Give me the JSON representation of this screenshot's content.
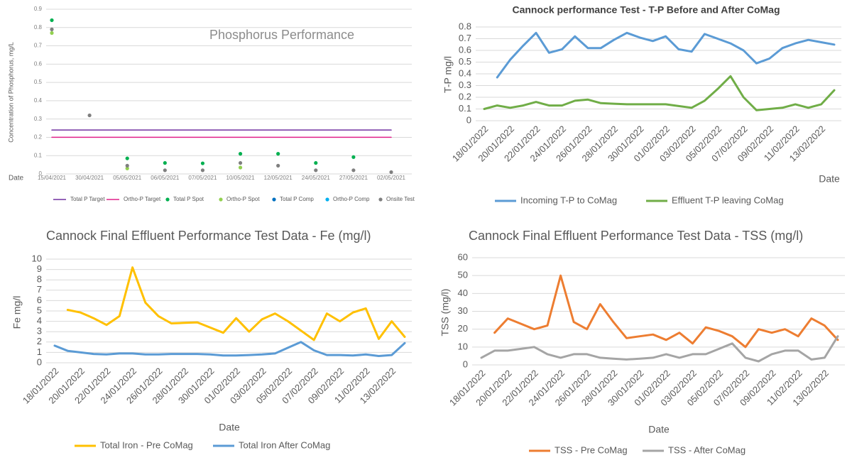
{
  "chart_data": [
    {
      "type": "scatter",
      "title": "Phosphorus Performance",
      "y_label": "Concentration of Phosphorus, mg/L",
      "x_label": "Date",
      "categories": [
        "15/04/2021",
        "30/04/2021",
        "05/05/2021",
        "06/05/2021",
        "07/05/2021",
        "10/05/2021",
        "12/05/2021",
        "24/05/2021",
        "27/05/2021",
        "02/05/2021"
      ],
      "ylim": [
        0,
        0.9
      ],
      "yticks": [
        0,
        0.1,
        0.2,
        0.3,
        0.4,
        0.5,
        0.6,
        0.7,
        0.8,
        0.9
      ],
      "grid": true,
      "legend": "bottom",
      "series": [
        {
          "name": "Total P Target",
          "color": "#7030a0",
          "style": "line",
          "values": [
            0.24,
            0.24,
            0.24,
            0.24,
            0.24,
            0.24,
            0.24,
            0.24,
            0.24,
            0.24
          ]
        },
        {
          "name": "Ortho-P Target",
          "color": "#e0218a",
          "style": "line",
          "values": [
            0.2,
            0.2,
            0.2,
            0.2,
            0.2,
            0.2,
            0.2,
            0.2,
            0.2,
            0.2
          ]
        },
        {
          "name": "Total P Spot",
          "color": "#00b050",
          "style": "marker",
          "values": [
            0.84,
            null,
            0.085,
            0.06,
            0.058,
            0.11,
            0.11,
            0.06,
            0.092,
            null
          ]
        },
        {
          "name": "Ortho-P Spot",
          "color": "#92d050",
          "style": "marker",
          "values": [
            0.77,
            null,
            0.03,
            null,
            null,
            0.035,
            null,
            null,
            null,
            null
          ]
        },
        {
          "name": "Total P Comp",
          "color": "#0070c0",
          "style": "marker",
          "values": [
            null,
            null,
            null,
            null,
            null,
            null,
            null,
            null,
            null,
            null
          ]
        },
        {
          "name": "Ortho-P Comp",
          "color": "#00b0f0",
          "style": "marker",
          "values": [
            null,
            null,
            null,
            null,
            null,
            null,
            null,
            null,
            null,
            null
          ]
        },
        {
          "name": "Onsite Test",
          "color": "#7f7f7f",
          "style": "marker",
          "values": [
            0.79,
            0.32,
            0.045,
            0.02,
            0.02,
            0.06,
            0.045,
            0.02,
            0.02,
            0.01
          ]
        }
      ]
    },
    {
      "type": "line",
      "title": "Cannock performance Test - T-P Before and After CoMag",
      "y_label": "T-P mg/l",
      "x_label": "Date",
      "categories": [
        "18/01/2022",
        null,
        "20/01/2022",
        null,
        "22/01/2022",
        null,
        "24/01/2022",
        null,
        "26/01/2022",
        null,
        "28/01/2022",
        null,
        "30/01/2022",
        null,
        "01/02/2022",
        null,
        "03/02/2022",
        null,
        "05/02/2022",
        null,
        "07/02/2022",
        null,
        "09/02/2022",
        null,
        "11/02/2022",
        null,
        "13/02/2022",
        null
      ],
      "ylim": [
        0,
        0.8
      ],
      "yticks": [
        0,
        0.1,
        0.2,
        0.3,
        0.4,
        0.5,
        0.6,
        0.7,
        0.8
      ],
      "grid": true,
      "legend": "bottom",
      "series": [
        {
          "name": "Incoming T-P to CoMag",
          "color": "#5b9bd5",
          "values": [
            null,
            0.37,
            0.52,
            0.64,
            0.75,
            0.58,
            0.61,
            0.72,
            0.62,
            0.62,
            0.69,
            0.75,
            0.71,
            0.68,
            0.72,
            0.61,
            0.59,
            0.74,
            0.7,
            0.66,
            0.6,
            0.49,
            0.53,
            0.62,
            0.66,
            0.69,
            0.67,
            0.65
          ]
        },
        {
          "name": "Effluent T-P leaving CoMag",
          "color": "#70ad47",
          "values": [
            0.1,
            0.13,
            0.11,
            0.13,
            0.16,
            0.13,
            0.13,
            0.17,
            0.18,
            0.15,
            0.145,
            0.14,
            0.14,
            0.14,
            0.14,
            0.125,
            0.11,
            0.17,
            0.27,
            0.38,
            0.2,
            0.09,
            0.1,
            0.11,
            0.14,
            0.11,
            0.14,
            0.26
          ]
        }
      ]
    },
    {
      "type": "line",
      "title": "Cannock Final Effluent Performance Test Data - Fe (mg/l)",
      "y_label": "Fe mg/l",
      "x_label": "Date",
      "categories": [
        "18/01/2022",
        null,
        "20/01/2022",
        null,
        "22/01/2022",
        null,
        "24/01/2022",
        null,
        "26/01/2022",
        null,
        "28/01/2022",
        null,
        "30/01/2022",
        null,
        "01/02/2022",
        null,
        "03/02/2022",
        null,
        "05/02/2022",
        null,
        "07/02/2022",
        null,
        "09/02/2022",
        null,
        "11/02/2022",
        null,
        "13/02/2022",
        null
      ],
      "ylim": [
        0,
        10
      ],
      "yticks": [
        0,
        1,
        2,
        3,
        4,
        5,
        6,
        7,
        8,
        9,
        10
      ],
      "grid": true,
      "legend": "bottom",
      "series": [
        {
          "name": "Total Iron - Pre CoMag",
          "color": "#ffc000",
          "values": [
            null,
            5.1,
            4.85,
            4.3,
            3.65,
            4.5,
            9.2,
            5.8,
            4.5,
            3.8,
            3.85,
            3.9,
            3.4,
            2.9,
            4.3,
            3.0,
            4.2,
            4.75,
            4.0,
            3.1,
            2.2,
            4.75,
            4.0,
            4.85,
            5.25,
            2.3,
            4.0,
            2.5
          ]
        },
        {
          "name": "Total Iron After CoMag",
          "color": "#5b9bd5",
          "values": [
            1.65,
            1.15,
            1.0,
            0.85,
            0.8,
            0.9,
            0.9,
            0.8,
            0.8,
            0.85,
            0.85,
            0.85,
            0.8,
            0.7,
            0.7,
            0.75,
            0.8,
            0.9,
            1.45,
            2.0,
            1.2,
            0.75,
            0.75,
            0.7,
            0.8,
            0.65,
            0.75,
            1.9
          ]
        }
      ]
    },
    {
      "type": "line",
      "title": "Cannock Final Effluent Performance Test Data - TSS (mg/l)",
      "y_label": "TSS (mg/l)",
      "x_label": "Date",
      "categories": [
        "18/01/2022",
        null,
        "20/01/2022",
        null,
        "22/01/2022",
        null,
        "24/01/2022",
        null,
        "26/01/2022",
        null,
        "28/01/2022",
        null,
        "30/01/2022",
        null,
        "01/02/2022",
        null,
        "03/02/2022",
        null,
        "05/02/2022",
        null,
        "07/02/2022",
        null,
        "09/02/2022",
        null,
        "11/02/2022",
        null,
        "13/02/2022",
        null
      ],
      "ylim": [
        0,
        60
      ],
      "yticks": [
        0,
        10,
        20,
        30,
        40,
        50,
        60
      ],
      "grid": true,
      "legend": "bottom",
      "series": [
        {
          "name": "TSS - Pre CoMag",
          "color": "#ed7d31",
          "values": [
            null,
            18,
            26,
            23,
            20,
            22,
            50,
            24,
            20,
            34,
            24,
            15,
            16,
            17,
            14,
            18,
            12,
            21,
            19,
            16,
            10,
            20,
            18,
            20,
            16,
            26,
            22,
            14
          ]
        },
        {
          "name": "TSS - After CoMag",
          "color": "#a5a5a5",
          "values": [
            4,
            8,
            8,
            9,
            10,
            6,
            4,
            6,
            6,
            4,
            3.5,
            3,
            3.5,
            4,
            6,
            4,
            6,
            6,
            9,
            12,
            4,
            2,
            6,
            8,
            8,
            3,
            4,
            16
          ]
        }
      ]
    }
  ]
}
